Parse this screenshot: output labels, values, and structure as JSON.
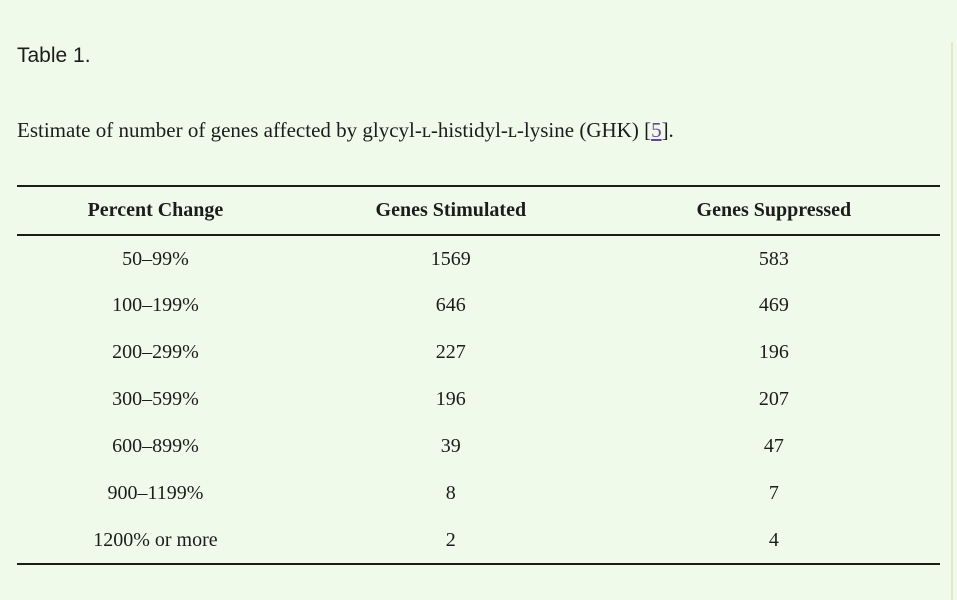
{
  "page": {
    "background_color": "#f0faeb",
    "right_edge_line_color": "#e1e9c4"
  },
  "title": "Table 1.",
  "caption": {
    "text_before": "Estimate of number of genes affected by glycyl-ʟ-histidyl-ʟ-lysine (GHK) [",
    "link_label": "5",
    "text_after": "].",
    "link_color": "#6b3fa0"
  },
  "table": {
    "rule_color": "#1c1c1c",
    "text_color": "#1c1c1c",
    "columns": [
      "Percent Change",
      "Genes Stimulated",
      "Genes Suppressed"
    ],
    "rows": [
      [
        "50–99%",
        "1569",
        "583"
      ],
      [
        "100–199%",
        "646",
        "469"
      ],
      [
        "200–299%",
        "227",
        "196"
      ],
      [
        "300–599%",
        "196",
        "207"
      ],
      [
        "600–899%",
        "39",
        "47"
      ],
      [
        "900–1199%",
        "8",
        "7"
      ],
      [
        "1200% or more",
        "2",
        "4"
      ]
    ]
  },
  "chart_data": {
    "type": "table",
    "title": "Estimate of number of genes affected by glycyl-ʟ-histidyl-ʟ-lysine (GHK)",
    "columns": [
      "Percent Change",
      "Genes Stimulated",
      "Genes Suppressed"
    ],
    "rows": [
      {
        "percent_change": "50–99%",
        "genes_stimulated": 1569,
        "genes_suppressed": 583
      },
      {
        "percent_change": "100–199%",
        "genes_stimulated": 646,
        "genes_suppressed": 469
      },
      {
        "percent_change": "200–299%",
        "genes_stimulated": 227,
        "genes_suppressed": 196
      },
      {
        "percent_change": "300–599%",
        "genes_stimulated": 196,
        "genes_suppressed": 207
      },
      {
        "percent_change": "600–899%",
        "genes_stimulated": 39,
        "genes_suppressed": 47
      },
      {
        "percent_change": "900–1199%",
        "genes_stimulated": 8,
        "genes_suppressed": 7
      },
      {
        "percent_change": "1200% or more",
        "genes_stimulated": 2,
        "genes_suppressed": 4
      }
    ]
  }
}
